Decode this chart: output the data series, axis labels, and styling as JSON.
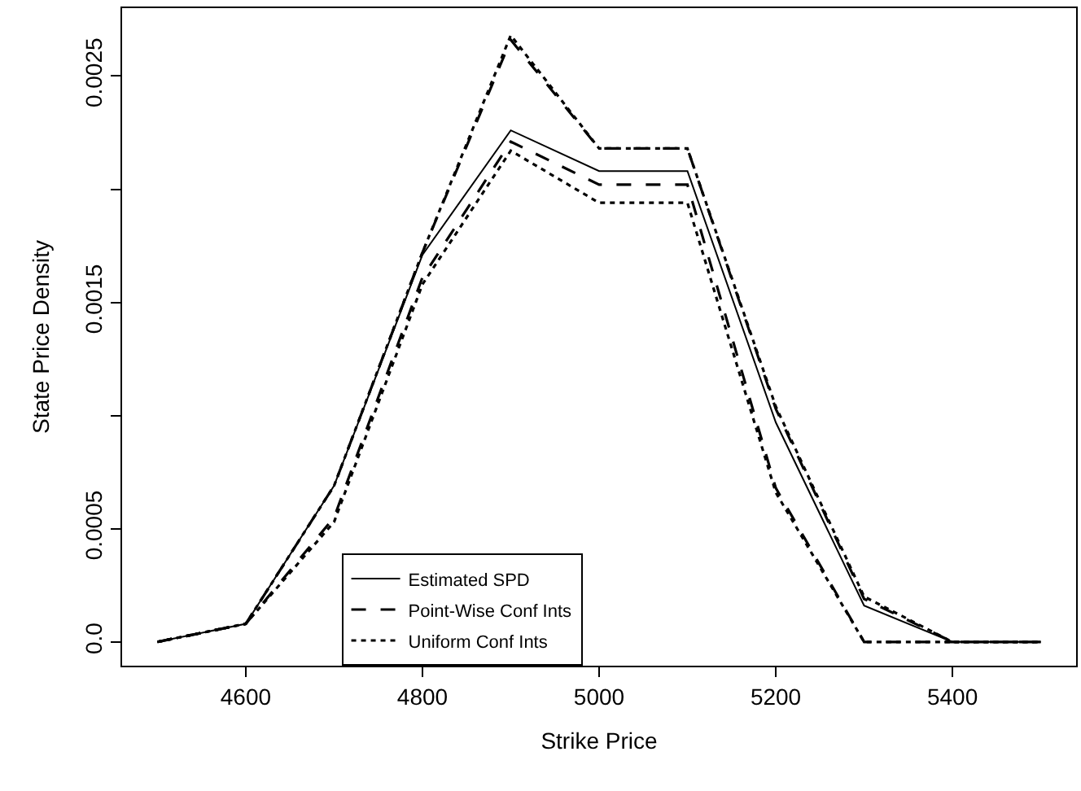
{
  "chart_data": {
    "type": "line",
    "xlabel": "Strike Price",
    "ylabel": "State Price Density",
    "x": [
      4500,
      4600,
      4700,
      4800,
      4900,
      5000,
      5100,
      5200,
      5300,
      5400,
      5500
    ],
    "series": [
      {
        "name": "Estimated SPD",
        "color": "#000000",
        "line_style": "solid",
        "values": [
          0,
          8e-05,
          0.00069,
          0.00171,
          0.00226,
          0.00208,
          0.00208,
          0.00097,
          0.00016,
          0,
          0
        ]
      },
      {
        "name": "Point-Wise Conf Ints",
        "color": "#000000",
        "line_style": "dashed",
        "values": [
          0,
          8e-05,
          0.00069,
          0.00172,
          0.00266,
          0.00218,
          0.00218,
          0.00103,
          0.00019,
          0,
          0
        ]
      },
      {
        "color": "#000000",
        "line_style": "dashed",
        "values": [
          0,
          8e-05,
          0.00055,
          0.00161,
          0.00221,
          0.00202,
          0.00202,
          0.00068,
          0,
          0,
          0
        ]
      },
      {
        "name": "Uniform Conf Ints",
        "color": "#000000",
        "line_style": "dotted",
        "values": [
          0,
          8e-05,
          0.00069,
          0.00172,
          0.00268,
          0.00218,
          0.00218,
          0.00104,
          0.0002,
          0,
          0
        ]
      },
      {
        "color": "#000000",
        "line_style": "dotted",
        "values": [
          0,
          8e-05,
          0.00053,
          0.00158,
          0.00217,
          0.00194,
          0.00194,
          0.00066,
          0,
          0,
          0
        ]
      }
    ],
    "xlim": [
      4460,
      5540
    ],
    "xticks": [
      4600,
      4800,
      5000,
      5200,
      5400
    ],
    "ylim": [
      -0.000105,
      0.0028
    ],
    "yticks": [
      {
        "value": 0,
        "label": "0.0"
      },
      0.0005,
      {
        "value": 0.001,
        "label": null
      },
      0.0015,
      {
        "value": 0.002,
        "label": null
      },
      0.0025
    ],
    "legend": "bottom",
    "marker": "none"
  }
}
